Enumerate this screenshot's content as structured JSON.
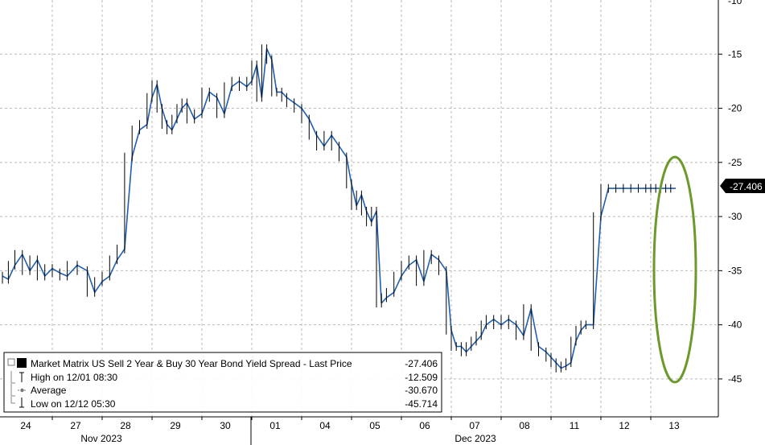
{
  "chart_data": {
    "type": "line",
    "title": "",
    "xlabel": "",
    "ylabel": "",
    "ylim": [
      -48.5,
      -10
    ],
    "y_ticks": [
      -15,
      -20,
      -25,
      -30,
      -35,
      -40,
      -45
    ],
    "y_tick_labels": [
      "-15",
      "-20",
      "-25",
      "-30",
      "-35",
      "-40",
      "-45"
    ],
    "x_ticks": [
      "24",
      "27",
      "28",
      "29",
      "30",
      "01",
      "04",
      "05",
      "06",
      "07",
      "08",
      "11",
      "12",
      "13"
    ],
    "months": [
      "Nov 2023",
      "Dec 2023"
    ],
    "grid": true,
    "legend_position": "bottom-left",
    "last_value_label": "-27.406",
    "colors": {
      "line": "#1f5fb0",
      "bar": "#000000",
      "ellipse": "#6b9a2a",
      "last_label_bg": "#000000"
    },
    "series": [
      {
        "name": "Market Matrix US Sell 2 Year & Buy 30 Year Bond Yield Spread - Last Price",
        "value_label": "-27.406",
        "x": [
          0,
          0.12,
          0.25,
          0.4,
          0.55,
          0.7,
          0.85,
          1.0,
          1.15,
          1.3,
          1.5,
          1.7,
          1.85,
          2.0,
          2.15,
          2.3,
          2.45,
          2.6,
          2.75,
          2.9,
          3.0,
          3.1,
          3.2,
          3.3,
          3.4,
          3.5,
          3.6,
          3.7,
          3.85,
          4.0,
          4.15,
          4.3,
          4.45,
          4.6,
          4.75,
          4.9,
          5.0,
          5.1,
          5.2,
          5.3,
          5.4,
          5.5,
          5.6,
          5.7,
          5.85,
          6.0,
          6.15,
          6.3,
          6.45,
          6.6,
          6.75,
          6.9,
          7.0,
          7.1,
          7.2,
          7.3,
          7.4,
          7.5,
          7.6,
          7.7,
          7.85,
          8.0,
          8.15,
          8.3,
          8.45,
          8.6,
          8.75,
          8.9,
          9.0,
          9.1,
          9.2,
          9.3,
          9.4,
          9.5,
          9.6,
          9.7,
          9.85,
          10.0,
          10.15,
          10.3,
          10.45,
          10.6,
          10.75,
          10.9,
          11.0,
          11.1,
          11.2,
          11.3,
          11.4,
          11.5,
          11.6,
          11.7,
          11.85,
          12.0,
          12.15,
          12.3,
          12.45,
          12.6,
          12.75,
          12.9,
          13.0,
          13.1,
          13.2,
          13.3,
          13.4,
          13.5
        ],
        "values": [
          -35.5,
          -35.8,
          -34.5,
          -33.5,
          -35.0,
          -34.0,
          -35.5,
          -34.8,
          -35.2,
          -35.5,
          -34.5,
          -35.0,
          -37.0,
          -36.0,
          -35.5,
          -34.0,
          -33.0,
          -24.5,
          -22.0,
          -21.5,
          -19.0,
          -17.8,
          -20.0,
          -21.5,
          -22.0,
          -21.0,
          -20.0,
          -19.5,
          -21.0,
          -20.5,
          -18.5,
          -19.0,
          -20.5,
          -18.0,
          -17.5,
          -18.0,
          -17.5,
          -16.0,
          -19.0,
          -14.5,
          -15.5,
          -18.5,
          -18.5,
          -19.0,
          -19.5,
          -20.0,
          -21.0,
          -22.5,
          -23.5,
          -22.5,
          -23.5,
          -24.5,
          -27.0,
          -29.0,
          -28.0,
          -29.5,
          -30.5,
          -29.5,
          -38.0,
          -37.5,
          -37.0,
          -35.5,
          -34.5,
          -34.0,
          -36.0,
          -33.5,
          -34.0,
          -35.0,
          -40.5,
          -42.0,
          -42.0,
          -42.5,
          -42.0,
          -41.5,
          -41.0,
          -40.0,
          -39.5,
          -40.0,
          -39.5,
          -40.0,
          -41.0,
          -38.5,
          -42.0,
          -42.5,
          -43.0,
          -43.5,
          -44.0,
          -43.8,
          -43.5,
          -41.5,
          -40.5,
          -40.0,
          -40.0,
          -30.0,
          -27.4,
          -27.4,
          -27.4,
          -27.4,
          -27.4,
          -27.4,
          -27.4,
          -27.4,
          -27.4,
          -27.4,
          -27.4,
          -27.4
        ]
      },
      {
        "name": "High on 12/01 08:30",
        "value_label": "-12.509",
        "value": -12.509
      },
      {
        "name": "Average",
        "value_label": "-30.670",
        "value": -30.67
      },
      {
        "name": "Low on 12/12 05:30",
        "value_label": "-45.714",
        "value": -45.714
      }
    ]
  }
}
